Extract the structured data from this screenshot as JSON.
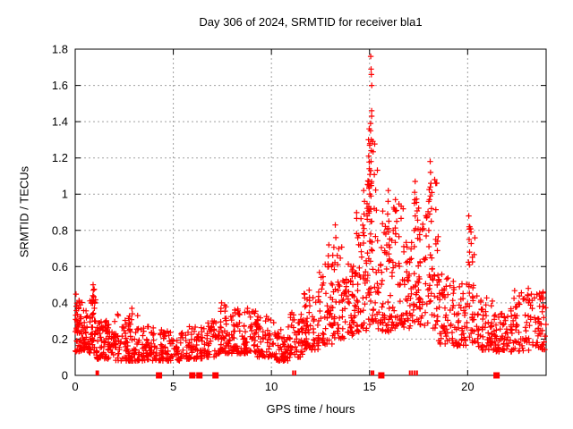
{
  "chart_data": {
    "type": "scatter",
    "title": "Day 306 of 2024, SRMTID for receiver bla1",
    "xlabel": "GPS time / hours",
    "ylabel": "SRMTID / TECUs",
    "xlim": [
      0,
      24
    ],
    "ylim": [
      0,
      1.8
    ],
    "xticks": {
      "values": [
        0,
        5,
        10,
        15,
        20
      ],
      "labels": [
        "0",
        "5",
        "10",
        "15",
        "20"
      ]
    },
    "yticks": {
      "values": [
        0,
        0.2,
        0.4,
        0.6,
        0.8,
        1.0,
        1.2,
        1.4,
        1.6,
        1.8
      ],
      "labels": [
        "0",
        "0.2",
        "0.4",
        "0.6",
        "0.8",
        "1",
        "1.2",
        "1.4",
        "1.6",
        "1.8"
      ]
    },
    "grid": true,
    "legend": "none",
    "colors": {
      "marker": "#ff0000",
      "grid": "#a0a0a0",
      "axis": "#000000",
      "background": "#ffffff"
    },
    "series": [
      {
        "name": "srmtid",
        "marker": "plus",
        "color": "#ff0000",
        "bins_format": "[x0,x1,count,ymin,ymax,skew]",
        "density_bins": [
          [
            0.0,
            0.35,
            48,
            0.13,
            0.45,
            1.4
          ],
          [
            0.35,
            0.7,
            36,
            0.14,
            0.36,
            1.6
          ],
          [
            0.7,
            1.05,
            40,
            0.12,
            0.48,
            1.5
          ],
          [
            1.05,
            2.0,
            85,
            0.09,
            0.31,
            1.7
          ],
          [
            2.0,
            3.2,
            95,
            0.08,
            0.34,
            1.9
          ],
          [
            3.2,
            4.5,
            85,
            0.08,
            0.27,
            1.8
          ],
          [
            4.5,
            5.5,
            65,
            0.08,
            0.25,
            1.8
          ],
          [
            5.5,
            6.6,
            70,
            0.09,
            0.27,
            1.8
          ],
          [
            6.6,
            7.2,
            40,
            0.1,
            0.3,
            1.7
          ],
          [
            7.2,
            8.2,
            75,
            0.12,
            0.39,
            1.7
          ],
          [
            8.2,
            9.2,
            75,
            0.12,
            0.37,
            1.7
          ],
          [
            9.2,
            10.2,
            70,
            0.1,
            0.33,
            1.7
          ],
          [
            10.2,
            10.9,
            50,
            0.08,
            0.27,
            1.8
          ],
          [
            10.9,
            11.6,
            48,
            0.1,
            0.36,
            1.6
          ],
          [
            11.6,
            12.4,
            58,
            0.14,
            0.46,
            1.5
          ],
          [
            12.4,
            13.1,
            52,
            0.17,
            0.62,
            1.5
          ],
          [
            13.1,
            13.7,
            48,
            0.2,
            0.72,
            1.5
          ],
          [
            13.7,
            14.3,
            48,
            0.22,
            0.62,
            1.4
          ],
          [
            14.3,
            14.85,
            50,
            0.24,
            0.92,
            1.5
          ],
          [
            14.85,
            15.4,
            62,
            0.28,
            1.3,
            1.4
          ],
          [
            15.4,
            16.1,
            58,
            0.24,
            0.92,
            1.6
          ],
          [
            16.1,
            16.75,
            48,
            0.26,
            0.95,
            1.6
          ],
          [
            16.75,
            17.25,
            40,
            0.26,
            0.75,
            1.6
          ],
          [
            17.25,
            17.65,
            40,
            0.28,
            1.02,
            1.5
          ],
          [
            17.65,
            18.5,
            62,
            0.26,
            1.12,
            1.5
          ],
          [
            18.5,
            19.25,
            52,
            0.17,
            0.58,
            1.6
          ],
          [
            19.25,
            20.0,
            50,
            0.16,
            0.54,
            1.6
          ],
          [
            20.0,
            20.5,
            36,
            0.18,
            0.85,
            1.8
          ],
          [
            20.5,
            21.3,
            55,
            0.14,
            0.44,
            1.7
          ],
          [
            21.3,
            22.3,
            68,
            0.13,
            0.37,
            1.7
          ],
          [
            22.3,
            23.35,
            62,
            0.13,
            0.47,
            1.5
          ],
          [
            23.35,
            24.0,
            42,
            0.13,
            0.46,
            1.4
          ]
        ],
        "spike_columns": [
          {
            "x": 15.08,
            "ys": [
              1.76,
              1.69,
              1.66,
              1.6,
              1.46,
              1.43,
              1.39,
              1.35,
              1.3,
              1.24,
              1.18,
              1.13,
              1.06,
              0.99,
              0.92,
              0.85,
              0.78
            ]
          },
          {
            "x": 14.98,
            "ys": [
              1.36,
              1.3,
              1.27,
              1.21,
              1.14,
              1.07,
              1.0,
              0.93
            ]
          },
          {
            "x": 14.72,
            "ys": [
              1.02,
              0.96,
              0.89,
              0.81,
              0.73
            ]
          },
          {
            "x": 15.95,
            "ys": [
              1.02,
              0.96,
              0.89,
              0.81,
              0.72,
              0.63
            ]
          },
          {
            "x": 16.35,
            "ys": [
              0.97,
              0.91,
              0.85,
              0.78
            ]
          },
          {
            "x": 17.3,
            "ys": [
              1.07,
              1.01,
              0.95,
              0.88,
              0.8,
              0.71
            ]
          },
          {
            "x": 18.12,
            "ys": [
              1.18,
              1.12,
              1.06,
              0.99,
              0.92,
              0.85
            ]
          },
          {
            "x": 18.03,
            "ys": [
              0.96,
              0.89,
              0.8,
              0.71
            ]
          },
          {
            "x": 20.08,
            "ys": [
              0.88,
              0.82,
              0.75,
              0.68,
              0.61
            ]
          },
          {
            "x": 13.25,
            "ys": [
              0.83,
              0.76
            ]
          },
          {
            "x": 12.9,
            "ys": [
              0.72,
              0.66,
              0.6
            ]
          },
          {
            "x": 13.8,
            "ys": [
              0.53,
              0.51,
              0.49,
              0.47
            ]
          },
          {
            "x": 0.9,
            "ys": [
              0.5,
              0.47,
              0.44,
              0.41
            ]
          },
          {
            "x": 11.92,
            "ys": [
              0.47,
              0.43
            ]
          },
          {
            "x": 23.1,
            "ys": [
              0.48,
              0.44,
              0.4
            ]
          },
          {
            "x": 23.85,
            "ys": [
              0.46,
              0.42,
              0.38
            ]
          },
          {
            "x": 7.45,
            "ys": [
              0.4,
              0.37
            ]
          },
          {
            "x": 2.9,
            "ys": [
              0.37,
              0.34
            ]
          }
        ]
      },
      {
        "name": "baseline-squares",
        "marker": "filled-square",
        "color": "#ff0000",
        "y": 0,
        "x": [
          4.27,
          5.97,
          6.33,
          7.15,
          15.6,
          21.47
        ]
      },
      {
        "name": "baseline-ticks",
        "marker": "vtick",
        "color": "#ff0000",
        "y": 0,
        "x": [
          1.08,
          1.17,
          11.1,
          11.22,
          15.1,
          15.2,
          17.05,
          17.17,
          17.3,
          17.42
        ]
      }
    ]
  }
}
